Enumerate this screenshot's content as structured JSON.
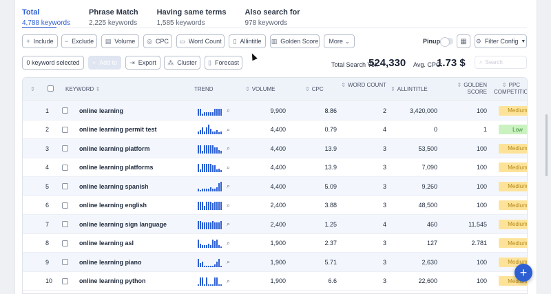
{
  "tabs": [
    {
      "title": "Total",
      "count": "4,788 keywords",
      "active": true
    },
    {
      "title": "Phrase Match",
      "count": "2,225 keywords",
      "active": false
    },
    {
      "title": "Having same terms",
      "count": "1,585 keywords",
      "active": false
    },
    {
      "title": "Also search for",
      "count": "978 keywords",
      "active": false
    }
  ],
  "filters": {
    "include": "Include",
    "exclude": "Exclude",
    "volume": "Volume",
    "cpc": "CPC",
    "word_count": "Word Count",
    "allintitle": "Allintitle",
    "golden_score": "Golden Score",
    "more": "More",
    "pinup": "Pinup",
    "filter_config": "Filter Config"
  },
  "actions": {
    "selected": "0 keyword selected",
    "add_to": "Add to",
    "export": "Export",
    "cluster": "Cluster",
    "forecast": "Forecast"
  },
  "stats": {
    "total_vol_label": "Total Search Vol:",
    "total_vol_value": "524,330",
    "avg_cpc_label": "Avg. CPC:",
    "avg_cpc_value": "1.73 $"
  },
  "search": {
    "placeholder": "Search"
  },
  "table": {
    "headers": {
      "keyword": "KEYWORD",
      "trend": "TREND",
      "volume": "VOLUME",
      "cpc": "CPC",
      "word_count": "WORD COUNT",
      "allintitle": "ALLINTITLE",
      "golden_score": "GOLDEN SCORE",
      "ppc": "PPC COMPETITION"
    },
    "rows": [
      {
        "n": "1",
        "keyword": "online learning",
        "trend": [
          10,
          10,
          3,
          5,
          5,
          5,
          5,
          5,
          10,
          10,
          10,
          10
        ],
        "volume": "9,900",
        "cpc": "8.86",
        "word_count": "2",
        "allintitle": "3,420,000",
        "golden": "100",
        "ppc": "Medium"
      },
      {
        "n": "2",
        "keyword": "online learning permit test",
        "trend": [
          4,
          6,
          10,
          4,
          10,
          14,
          8,
          4,
          4,
          6,
          3,
          4
        ],
        "volume": "4,400",
        "cpc": "0.79",
        "word_count": "4",
        "allintitle": "0",
        "golden": "1",
        "ppc": "Low"
      },
      {
        "n": "3",
        "keyword": "online learning platform",
        "trend": [
          12,
          12,
          4,
          12,
          12,
          12,
          12,
          12,
          9,
          9,
          5,
          4
        ],
        "volume": "4,400",
        "cpc": "13.9",
        "word_count": "3",
        "allintitle": "53,500",
        "golden": "100",
        "ppc": "Medium"
      },
      {
        "n": "4",
        "keyword": "online learning platforms",
        "trend": [
          12,
          4,
          12,
          12,
          12,
          12,
          12,
          10,
          10,
          4,
          5,
          3
        ],
        "volume": "4,400",
        "cpc": "13.9",
        "word_count": "3",
        "allintitle": "7,090",
        "golden": "100",
        "ppc": "Medium"
      },
      {
        "n": "5",
        "keyword": "online learning spanish",
        "trend": [
          4,
          2,
          4,
          4,
          4,
          4,
          6,
          4,
          4,
          6,
          12,
          14
        ],
        "volume": "4,400",
        "cpc": "5.09",
        "word_count": "3",
        "allintitle": "9,260",
        "golden": "100",
        "ppc": "Medium"
      },
      {
        "n": "6",
        "keyword": "online learning english",
        "trend": [
          12,
          12,
          12,
          6,
          12,
          12,
          12,
          10,
          12,
          12,
          12,
          12
        ],
        "volume": "2,400",
        "cpc": "3.88",
        "word_count": "3",
        "allintitle": "48,500",
        "golden": "100",
        "ppc": "Medium"
      },
      {
        "n": "7",
        "keyword": "online learning sign language",
        "trend": [
          12,
          12,
          10,
          10,
          10,
          10,
          10,
          12,
          10,
          10,
          10,
          12
        ],
        "volume": "2,400",
        "cpc": "1.25",
        "word_count": "4",
        "allintitle": "460",
        "golden": "11.545",
        "ppc": "Medium"
      },
      {
        "n": "8",
        "keyword": "online learning asl",
        "trend": [
          12,
          6,
          4,
          4,
          4,
          6,
          4,
          12,
          10,
          12,
          4,
          2
        ],
        "volume": "1,900",
        "cpc": "2.37",
        "word_count": "3",
        "allintitle": "127",
        "golden": "2.781",
        "ppc": "Medium"
      },
      {
        "n": "9",
        "keyword": "online learning piano",
        "trend": [
          12,
          6,
          8,
          2,
          2,
          2,
          2,
          2,
          4,
          8,
          12,
          2
        ],
        "volume": "1,900",
        "cpc": "5.71",
        "word_count": "3",
        "allintitle": "2,630",
        "golden": "100",
        "ppc": "Medium"
      },
      {
        "n": "10",
        "keyword": "online learning python",
        "trend": [
          2,
          12,
          12,
          2,
          12,
          2,
          2,
          2,
          12,
          12,
          2,
          2
        ],
        "volume": "1,900",
        "cpc": "6.6",
        "word_count": "3",
        "allintitle": "22,600",
        "golden": "100",
        "ppc": "Medium"
      }
    ]
  },
  "colors": {
    "accent": "#2d5fd3",
    "medium_bg": "#fde39a",
    "medium_text": "#b58a1a",
    "low_bg": "#c9f2c0",
    "low_text": "#3a8a2e"
  },
  "icons": {
    "include": "plus-icon",
    "exclude": "minus-icon",
    "volume": "volume-icon",
    "cpc": "coins-icon",
    "word_count": "keyboard-icon",
    "allintitle": "document-icon",
    "golden_score": "chart-icon",
    "more": "chevron-down-icon",
    "filter_config": "gear-icon",
    "trend_search": "search-icon",
    "fab": "plus-icon"
  }
}
